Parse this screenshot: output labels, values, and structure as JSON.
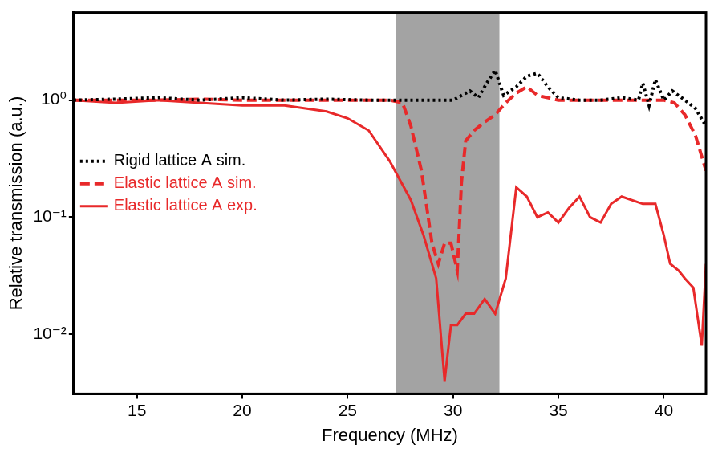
{
  "chart_data": {
    "type": "line",
    "x_label": "Frequency (MHz)",
    "y_label": "Relative transmission (a.u.)",
    "log": "y",
    "grid": false,
    "legend": "upper left",
    "xlim": [
      12,
      42
    ],
    "xticks": [
      15,
      20,
      25,
      30,
      35,
      40
    ],
    "ylim": [
      0.0031,
      5.6
    ],
    "yticks": [
      {
        "value": 0.01,
        "label": "10⁻²"
      },
      {
        "value": 0.1,
        "label": "10⁻¹"
      },
      {
        "value": 1,
        "label": "10⁰"
      }
    ],
    "shaded_x": [
      27.3,
      32.2
    ],
    "series": [
      {
        "name": "Rigid lattice A sim.",
        "color": "#000000",
        "line_style": "dotted",
        "x": [
          12,
          14,
          16,
          18,
          20,
          22,
          24,
          26,
          28,
          30,
          30.8,
          31.2,
          31.6,
          32,
          32.4,
          33,
          33.5,
          34,
          34.5,
          35,
          36,
          37,
          38,
          38.8,
          39,
          39.3,
          39.6,
          40,
          40.4,
          41,
          41.5,
          42
        ],
        "values": [
          1.0,
          1.02,
          1.05,
          1.0,
          1.05,
          1.0,
          1.02,
          1.0,
          1.0,
          1.0,
          1.2,
          1.05,
          1.4,
          1.8,
          1.1,
          1.3,
          1.6,
          1.7,
          1.3,
          1.05,
          1.0,
          1.0,
          1.05,
          1.0,
          1.4,
          0.9,
          1.5,
          1.0,
          1.2,
          1.0,
          0.85,
          0.6
        ]
      },
      {
        "name": "Elastic lattice A sim.",
        "color": "#e8292a",
        "line_style": "dashed",
        "x": [
          12,
          14,
          16,
          18,
          20,
          22,
          24,
          26,
          27,
          27.6,
          28,
          28.5,
          29,
          29.3,
          29.6,
          29.9,
          30.2,
          30.4,
          30.6,
          31,
          31.5,
          32,
          32.5,
          33,
          33.5,
          34,
          35,
          36,
          37,
          38,
          39,
          40,
          40.5,
          41,
          41.5,
          42
        ],
        "values": [
          1.0,
          1.0,
          1.0,
          1.02,
          1.0,
          1.0,
          1.0,
          1.0,
          1.0,
          0.95,
          0.6,
          0.25,
          0.06,
          0.04,
          0.06,
          0.06,
          0.035,
          0.2,
          0.45,
          0.55,
          0.65,
          0.75,
          0.95,
          1.15,
          1.3,
          1.1,
          1.0,
          1.0,
          1.0,
          1.0,
          1.0,
          1.0,
          0.95,
          0.75,
          0.5,
          0.25
        ]
      },
      {
        "name": "Elastic lattice A exp.",
        "color": "#e8292a",
        "line_style": "solid",
        "x": [
          12,
          14,
          16,
          18,
          20,
          22,
          23,
          24,
          25,
          26,
          27,
          28,
          28.6,
          29.2,
          29.6,
          29.9,
          30.2,
          30.6,
          31,
          31.5,
          32,
          32.5,
          33,
          33.5,
          34,
          34.5,
          35,
          35.5,
          36,
          36.5,
          37,
          37.5,
          38,
          39,
          39.6,
          40,
          40.3,
          40.7,
          41,
          41.4,
          41.8,
          42
        ],
        "values": [
          1.0,
          0.95,
          1.0,
          0.95,
          0.9,
          0.9,
          0.85,
          0.8,
          0.7,
          0.55,
          0.3,
          0.14,
          0.07,
          0.03,
          0.004,
          0.012,
          0.012,
          0.015,
          0.015,
          0.02,
          0.015,
          0.03,
          0.18,
          0.15,
          0.1,
          0.11,
          0.09,
          0.12,
          0.15,
          0.1,
          0.09,
          0.13,
          0.15,
          0.13,
          0.13,
          0.07,
          0.04,
          0.035,
          0.03,
          0.025,
          0.008,
          0.04
        ]
      }
    ]
  }
}
